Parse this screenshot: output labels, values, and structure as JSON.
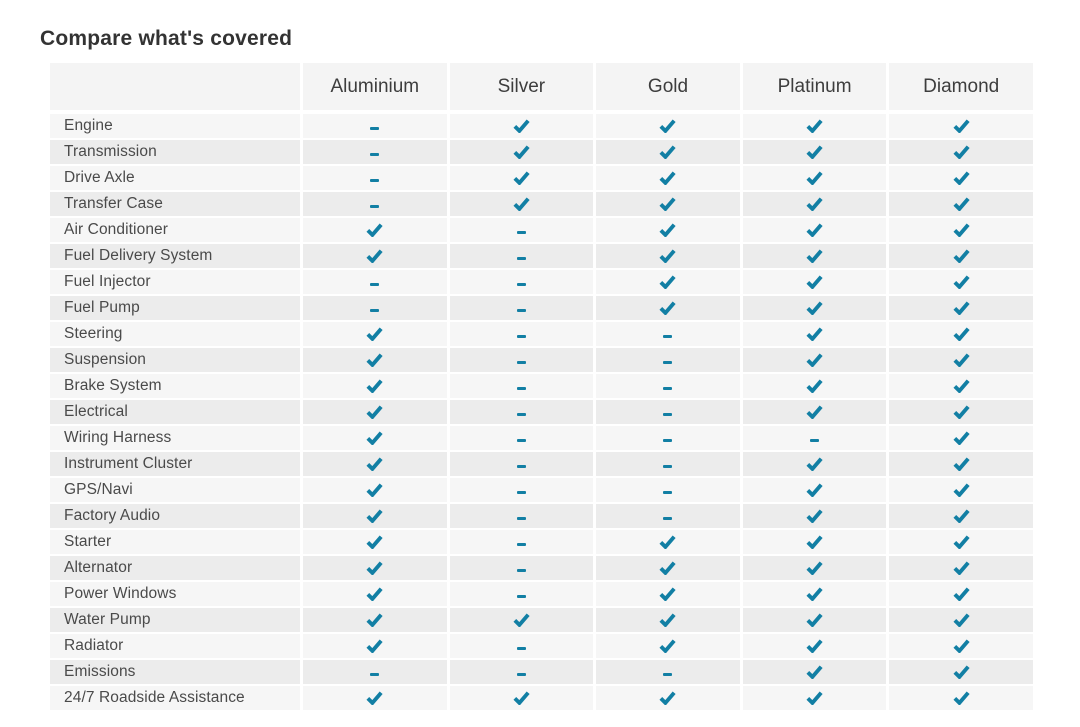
{
  "page": {
    "title": "Compare what's covered"
  },
  "table": {
    "plans": [
      "Aluminium",
      "Silver",
      "Gold",
      "Platinum",
      "Diamond"
    ],
    "colors": {
      "accent": "#127fa4",
      "header_bg": "#f4f4f4",
      "row_odd_bg": "#f6f6f6",
      "row_even_bg": "#ececec"
    },
    "icon_legend": {
      "check": "check-icon",
      "dash": "dash-icon"
    },
    "rows": [
      {
        "label": "Engine",
        "coverage": [
          "dash",
          "check",
          "check",
          "check",
          "check"
        ]
      },
      {
        "label": "Transmission",
        "coverage": [
          "dash",
          "check",
          "check",
          "check",
          "check"
        ]
      },
      {
        "label": "Drive Axle",
        "coverage": [
          "dash",
          "check",
          "check",
          "check",
          "check"
        ]
      },
      {
        "label": "Transfer Case",
        "coverage": [
          "dash",
          "check",
          "check",
          "check",
          "check"
        ]
      },
      {
        "label": "Air Conditioner",
        "coverage": [
          "check",
          "dash",
          "check",
          "check",
          "check"
        ]
      },
      {
        "label": "Fuel Delivery System",
        "coverage": [
          "check",
          "dash",
          "check",
          "check",
          "check"
        ]
      },
      {
        "label": "Fuel Injector",
        "coverage": [
          "dash",
          "dash",
          "check",
          "check",
          "check"
        ]
      },
      {
        "label": "Fuel Pump",
        "coverage": [
          "dash",
          "dash",
          "check",
          "check",
          "check"
        ]
      },
      {
        "label": "Steering",
        "coverage": [
          "check",
          "dash",
          "dash",
          "check",
          "check"
        ]
      },
      {
        "label": "Suspension",
        "coverage": [
          "check",
          "dash",
          "dash",
          "check",
          "check"
        ]
      },
      {
        "label": "Brake System",
        "coverage": [
          "check",
          "dash",
          "dash",
          "check",
          "check"
        ]
      },
      {
        "label": "Electrical",
        "coverage": [
          "check",
          "dash",
          "dash",
          "check",
          "check"
        ]
      },
      {
        "label": "Wiring Harness",
        "coverage": [
          "check",
          "dash",
          "dash",
          "dash",
          "check"
        ]
      },
      {
        "label": "Instrument Cluster",
        "coverage": [
          "check",
          "dash",
          "dash",
          "check",
          "check"
        ]
      },
      {
        "label": "GPS/Navi",
        "coverage": [
          "check",
          "dash",
          "dash",
          "check",
          "check"
        ]
      },
      {
        "label": "Factory Audio",
        "coverage": [
          "check",
          "dash",
          "dash",
          "check",
          "check"
        ]
      },
      {
        "label": "Starter",
        "coverage": [
          "check",
          "dash",
          "check",
          "check",
          "check"
        ]
      },
      {
        "label": "Alternator",
        "coverage": [
          "check",
          "dash",
          "check",
          "check",
          "check"
        ]
      },
      {
        "label": "Power Windows",
        "coverage": [
          "check",
          "dash",
          "check",
          "check",
          "check"
        ]
      },
      {
        "label": "Water Pump",
        "coverage": [
          "check",
          "check",
          "check",
          "check",
          "check"
        ]
      },
      {
        "label": "Radiator",
        "coverage": [
          "check",
          "dash",
          "check",
          "check",
          "check"
        ]
      },
      {
        "label": "Emissions",
        "coverage": [
          "dash",
          "dash",
          "dash",
          "check",
          "check"
        ]
      },
      {
        "label": "24/7 Roadside Assistance",
        "coverage": [
          "check",
          "check",
          "check",
          "check",
          "check"
        ]
      }
    ]
  }
}
